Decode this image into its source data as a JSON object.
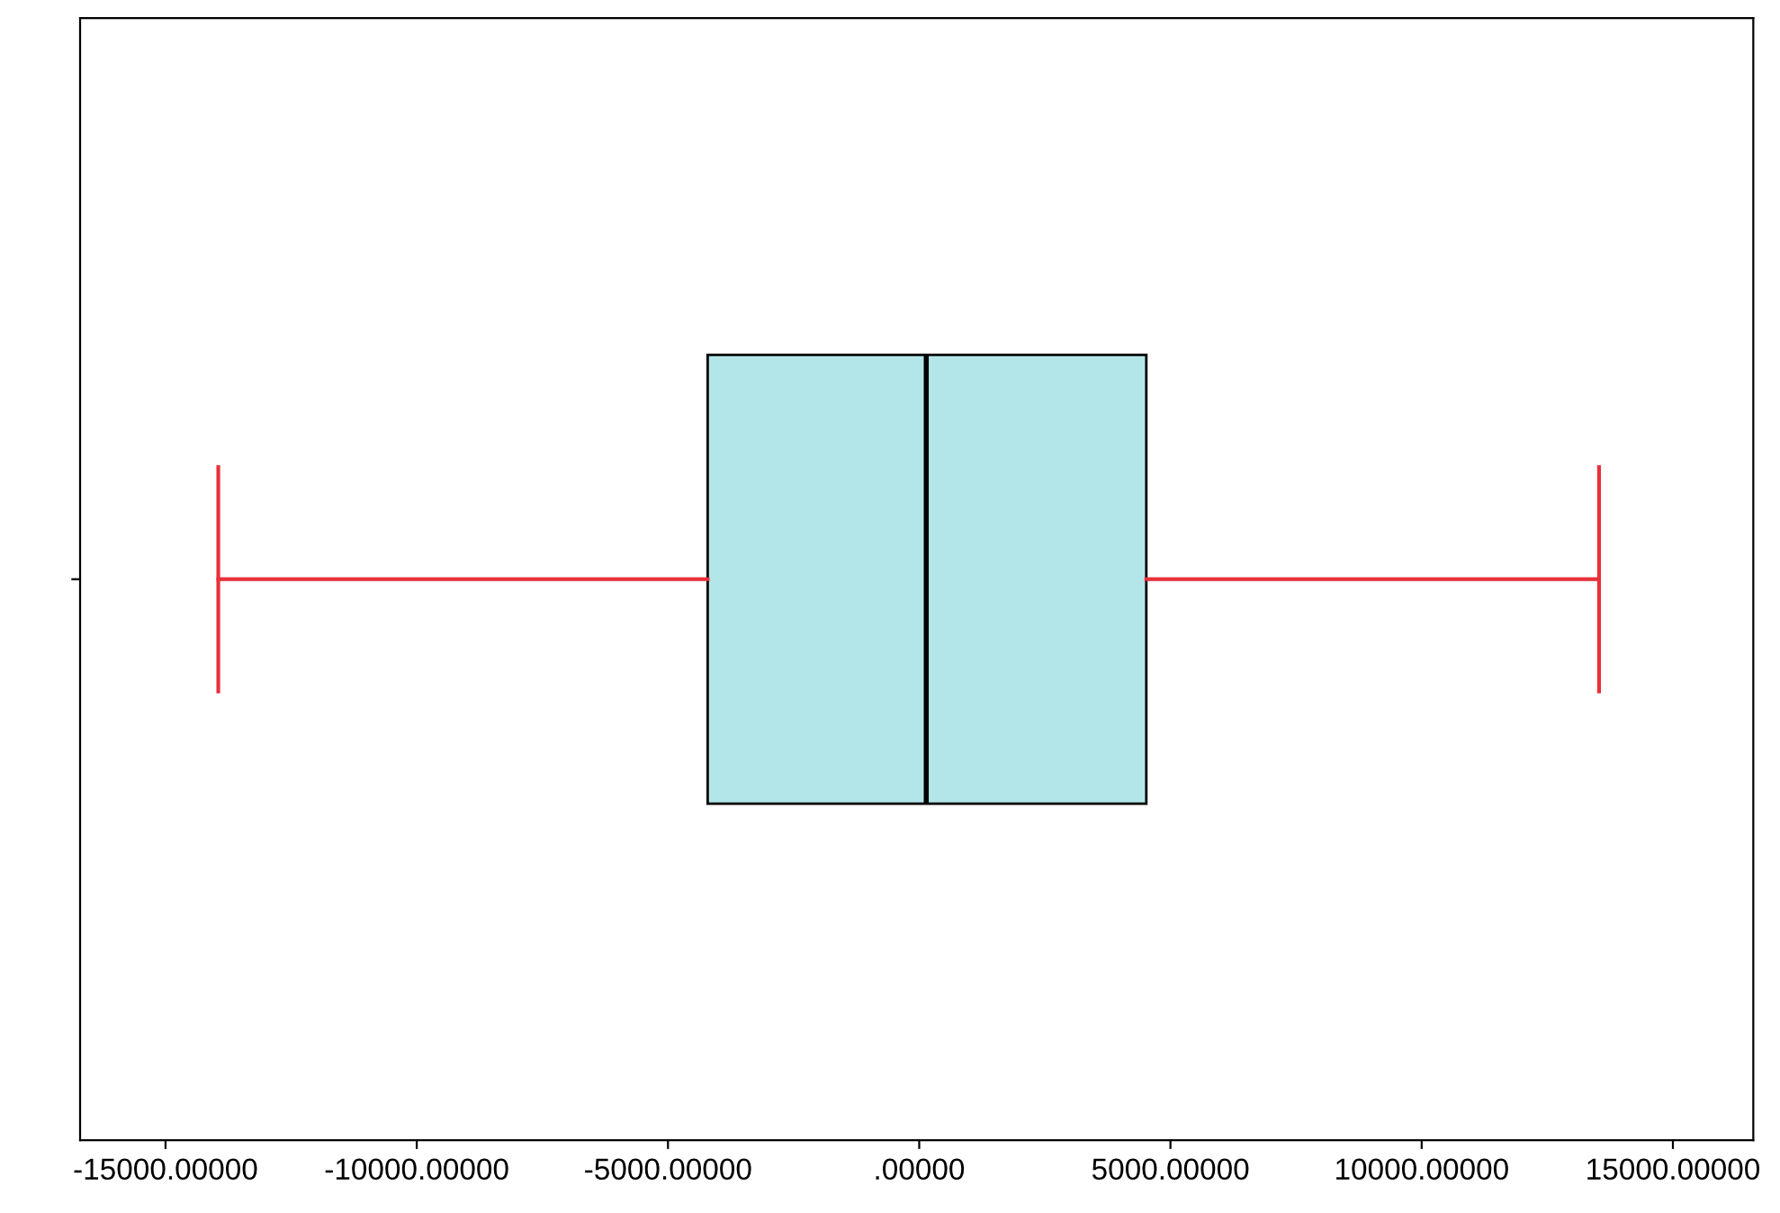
{
  "chart_data": {
    "type": "box",
    "orientation": "horizontal",
    "categories": [
      null
    ],
    "series": [
      {
        "color": "#b3e6e8",
        "boxes": [
          {
            "low": -13950,
            "q1": -4210,
            "median": 140,
            "q3": 4520,
            "high": 13530
          }
        ]
      }
    ],
    "xlim": [
      -16700,
      16600
    ],
    "xticks": [
      {
        "value": -15000,
        "label": "-15000.00000"
      },
      {
        "value": -10000,
        "label": "-10000.00000"
      },
      {
        "value": -5000,
        "label": "-5000.00000"
      },
      {
        "value": 0,
        "label": ".00000"
      },
      {
        "value": 5000,
        "label": "5000.00000"
      },
      {
        "value": 10000,
        "label": "10000.00000"
      },
      {
        "value": 15000,
        "label": "15000.00000"
      }
    ],
    "grid": false
  }
}
